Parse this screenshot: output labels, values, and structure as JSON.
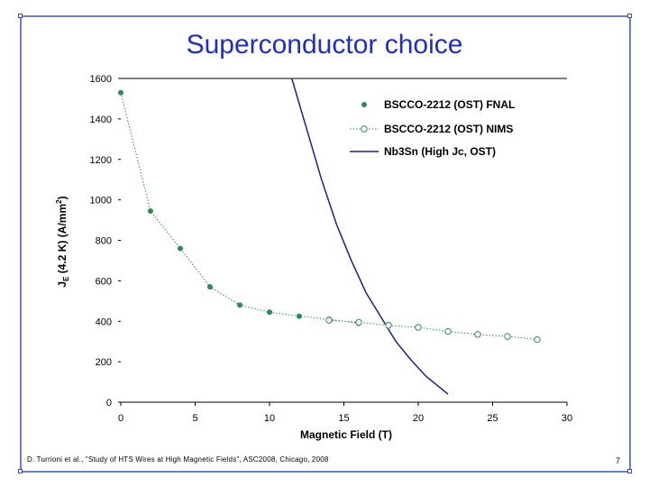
{
  "slide": {
    "title": "Superconductor choice",
    "footer": "D. Turrioni et al., \"Study of HTS Wires at High Magnetic Fields\", ASC2008, Chicago, 2008",
    "page_number": "7"
  },
  "colors": {
    "frame": "#6a7fc8",
    "title": "#1f2ec4",
    "bscco_fnal": "#2e8b57",
    "bscco_nims": "#2e8b57",
    "nb3sn": "#1a237e"
  },
  "chart_data": {
    "type": "scatter",
    "xlabel": "Magnetic Field (T)",
    "ylabel_parts": [
      "J",
      "E",
      " (4.2 K) (A/mm",
      "2",
      ")"
    ],
    "xlim": [
      0,
      30
    ],
    "ylim": [
      0,
      1600
    ],
    "xticks": [
      0,
      5,
      10,
      15,
      20,
      25,
      30
    ],
    "yticks": [
      0,
      200,
      400,
      600,
      800,
      1000,
      1200,
      1400,
      1600
    ],
    "grid": false,
    "legend_position": "top-right",
    "series": [
      {
        "name": "BSCCO-2212 (OST) FNAL",
        "style": "dotted line with filled markers",
        "x": [
          0,
          2,
          4,
          6,
          8,
          10,
          12,
          14,
          16
        ],
        "y": [
          1530,
          945,
          760,
          570,
          480,
          445,
          425,
          410,
          390
        ]
      },
      {
        "name": "BSCCO-2212 (OST) NIMS",
        "style": "dotted line with open circle markers",
        "x": [
          14,
          16,
          18,
          20,
          22,
          24,
          26,
          28
        ],
        "y": [
          405,
          395,
          380,
          370,
          350,
          335,
          325,
          310
        ]
      },
      {
        "name": "Nb3Sn (High Jc, OST)",
        "style": "solid line",
        "x": [
          11.5,
          12.5,
          13.5,
          14.5,
          15.5,
          16.5,
          17.5,
          18.5,
          19.5,
          20.5,
          22
        ],
        "y": [
          1620,
          1350,
          1100,
          880,
          700,
          540,
          420,
          300,
          210,
          130,
          40
        ]
      }
    ]
  }
}
